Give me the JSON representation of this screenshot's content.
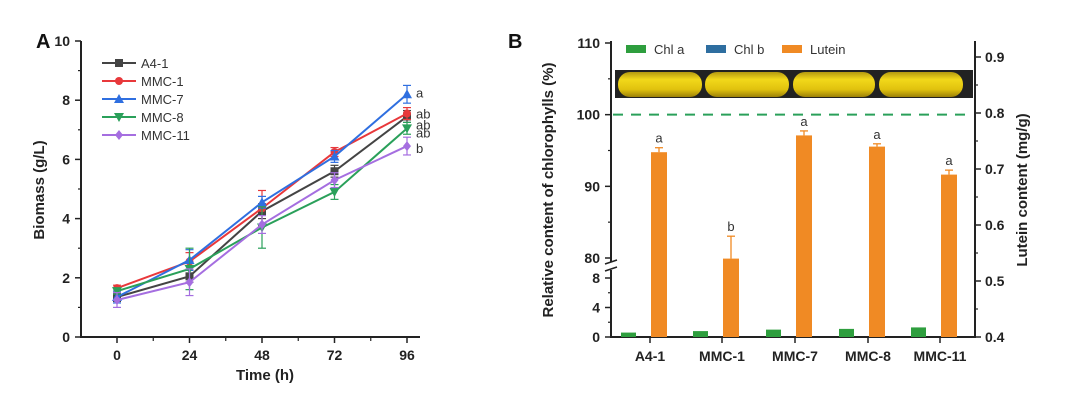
{
  "chart_data": [
    {
      "panel": "A",
      "type": "line",
      "title": "",
      "xlabel": "Time (h)",
      "ylabel": "Biomass (g/L)",
      "x": [
        0,
        24,
        48,
        72,
        96
      ],
      "x_ticks": [
        "0",
        "24",
        "48",
        "72",
        "96"
      ],
      "xlim": [
        -8,
        104
      ],
      "ylim": [
        0,
        10
      ],
      "y_ticks": [
        "0",
        "2",
        "4",
        "6",
        "8",
        "10"
      ],
      "legend_position": "top-left",
      "series": [
        {
          "name": "A4-1",
          "color": "#444444",
          "marker": "square",
          "values": [
            1.35,
            2.05,
            4.25,
            5.6,
            7.45
          ],
          "errors": [
            0.15,
            0.2,
            0.25,
            0.2,
            0.2
          ],
          "sig": "ab"
        },
        {
          "name": "MMC-1",
          "color": "#e8383b",
          "marker": "circle",
          "values": [
            1.65,
            2.55,
            4.35,
            6.25,
            7.55
          ],
          "errors": [
            0.1,
            0.3,
            0.6,
            0.15,
            0.2
          ],
          "sig": "ab"
        },
        {
          "name": "MMC-7",
          "color": "#2f6fe0",
          "marker": "triangle-up",
          "values": [
            1.35,
            2.6,
            4.55,
            6.1,
            8.2
          ],
          "errors": [
            0.2,
            0.35,
            0.2,
            0.2,
            0.3
          ],
          "sig": "a"
        },
        {
          "name": "MMC-8",
          "color": "#2aa05a",
          "marker": "triangle-down",
          "values": [
            1.55,
            2.3,
            3.7,
            4.9,
            7.05
          ],
          "errors": [
            0.1,
            0.7,
            0.7,
            0.25,
            0.2
          ],
          "sig": "ab"
        },
        {
          "name": "MMC-11",
          "color": "#a56ee0",
          "marker": "diamond",
          "values": [
            1.25,
            1.85,
            3.8,
            5.3,
            6.45
          ],
          "errors": [
            0.25,
            0.45,
            0.3,
            0.25,
            0.3
          ],
          "sig": "b"
        }
      ]
    },
    {
      "panel": "B",
      "type": "bar",
      "title": "",
      "xlabel": "",
      "ylabel": "Relative content of chlorophylls (%)",
      "y2label": "Lutein content (mg/g)",
      "categories": [
        "A4-1",
        "MMC-1",
        "MMC-7",
        "MMC-8",
        "MMC-11"
      ],
      "ylim": [
        0,
        110
      ],
      "y_axis_break": [
        8,
        80
      ],
      "y_ticks": [
        "0",
        "4",
        "8",
        "80",
        "90",
        "100",
        "110"
      ],
      "y2lim": [
        0.4,
        0.9
      ],
      "y2_ticks": [
        "0.4",
        "0.5",
        "0.6",
        "0.7",
        "0.8",
        "0.9"
      ],
      "reference_line": {
        "axis": "y",
        "value": 100,
        "style": "dashed",
        "color": "#2aa05a"
      },
      "legend_position": "top",
      "series": [
        {
          "name": "Chl a",
          "color": "#2e9e3e",
          "axis": "left",
          "values": [
            0.6,
            0.8,
            1.0,
            1.1,
            1.3
          ]
        },
        {
          "name": "Chl b",
          "color": "#2e6ea0",
          "axis": "left",
          "values": [
            0,
            0,
            0,
            0,
            0
          ]
        },
        {
          "name": "Lutein",
          "color": "#f08a24",
          "axis": "right",
          "values": [
            0.73,
            0.54,
            0.76,
            0.74,
            0.69
          ],
          "errors": [
            0.008,
            0.04,
            0.008,
            0.005,
            0.008
          ],
          "sig": [
            "a",
            "b",
            "a",
            "a",
            "a"
          ]
        }
      ],
      "inset": "photo of yellow culture samples in cuvettes"
    }
  ],
  "panel_labels": [
    "A",
    "B"
  ]
}
